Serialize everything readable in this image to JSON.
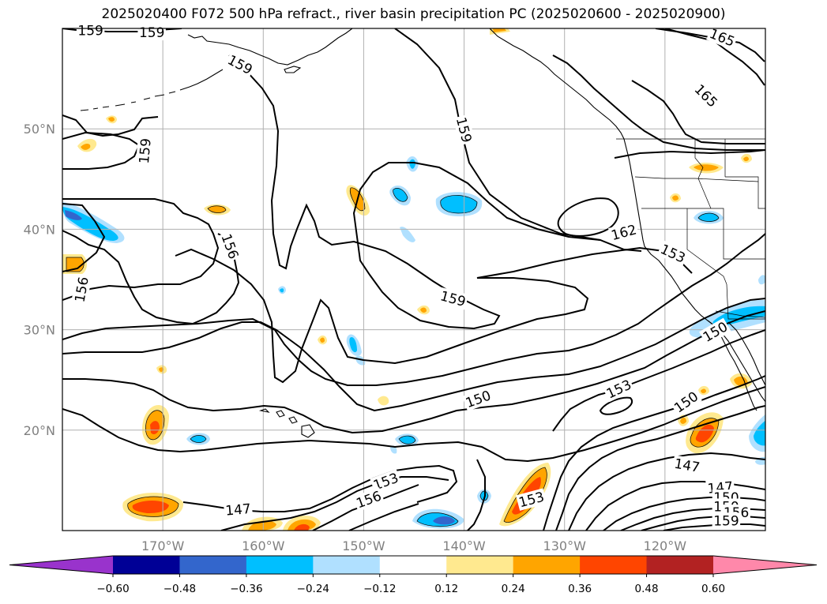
{
  "title": "2025020400 F072 500 hPa refract., river basin precipitation PC (2025020600 - 2025020900)",
  "map": {
    "lon_range": [
      -180,
      -110
    ],
    "lat_range": [
      10,
      60
    ],
    "lat_ticks": [
      {
        "value": 50,
        "label": "50°N"
      },
      {
        "value": 40,
        "label": "40°N"
      },
      {
        "value": 30,
        "label": "30°N"
      },
      {
        "value": 20,
        "label": "20°N"
      }
    ],
    "lon_ticks": [
      {
        "value": -170,
        "label": "170°W"
      },
      {
        "value": -160,
        "label": "160°W"
      },
      {
        "value": -150,
        "label": "150°W"
      },
      {
        "value": -140,
        "label": "140°W"
      },
      {
        "value": -130,
        "label": "130°W"
      },
      {
        "value": -120,
        "label": "120°W"
      }
    ],
    "grid": true
  },
  "contour_labels": [
    {
      "text": "159",
      "lon": -177.2,
      "lat": 59.8,
      "rot": 0
    },
    {
      "text": "159",
      "lon": -171.1,
      "lat": 59.6,
      "rot": 0
    },
    {
      "text": "159",
      "lon": -162.3,
      "lat": 56.4,
      "rot": 28
    },
    {
      "text": "165",
      "lon": -114.3,
      "lat": 59.1,
      "rot": 22
    },
    {
      "text": "159",
      "lon": -140.0,
      "lat": 49.9,
      "rot": 75
    },
    {
      "text": "165",
      "lon": -115.9,
      "lat": 53.3,
      "rot": 45
    },
    {
      "text": "159",
      "lon": -171.8,
      "lat": 47.8,
      "rot": -85
    },
    {
      "text": "162",
      "lon": -124.1,
      "lat": 39.7,
      "rot": -15
    },
    {
      "text": "156",
      "lon": -163.3,
      "lat": 38.3,
      "rot": 70
    },
    {
      "text": "153",
      "lon": -119.2,
      "lat": 37.6,
      "rot": 25
    },
    {
      "text": "156",
      "lon": -178.1,
      "lat": 34.0,
      "rot": -80
    },
    {
      "text": "159",
      "lon": -141.1,
      "lat": 33.1,
      "rot": 15
    },
    {
      "text": "150",
      "lon": -115.0,
      "lat": 29.8,
      "rot": -30
    },
    {
      "text": "153",
      "lon": -124.6,
      "lat": 24.1,
      "rot": -25
    },
    {
      "text": "150",
      "lon": -138.6,
      "lat": 23.1,
      "rot": -20
    },
    {
      "text": "150",
      "lon": -117.9,
      "lat": 22.8,
      "rot": -35
    },
    {
      "text": "147",
      "lon": -117.8,
      "lat": 16.5,
      "rot": 10
    },
    {
      "text": "153",
      "lon": -147.8,
      "lat": 14.9,
      "rot": -20
    },
    {
      "text": "147",
      "lon": -114.5,
      "lat": 14.3,
      "rot": -5
    },
    {
      "text": "150",
      "lon": -113.9,
      "lat": 13.3,
      "rot": 0
    },
    {
      "text": "156",
      "lon": -149.5,
      "lat": 13.1,
      "rot": -20
    },
    {
      "text": "153",
      "lon": -133.3,
      "lat": 13.1,
      "rot": -15
    },
    {
      "text": "150",
      "lon": -113.9,
      "lat": 12.4,
      "rot": 0
    },
    {
      "text": "147",
      "lon": -162.5,
      "lat": 12.1,
      "rot": -5
    },
    {
      "text": "156",
      "lon": -112.9,
      "lat": 11.8,
      "rot": 0
    },
    {
      "text": "159",
      "lon": -113.9,
      "lat": 11.0,
      "rot": 0
    }
  ],
  "colorbar": {
    "ticks": [
      "−0.60",
      "−0.48",
      "−0.36",
      "−0.24",
      "−0.12",
      "0.12",
      "0.24",
      "0.36",
      "0.48",
      "0.60"
    ],
    "colors": [
      "#9933cc",
      "#000096",
      "#3366cc",
      "#00bfff",
      "#b0e0ff",
      "#ffffff",
      "#ffe98f",
      "#ffa500",
      "#ff4500",
      "#b22222",
      "#ff88aa"
    ]
  }
}
